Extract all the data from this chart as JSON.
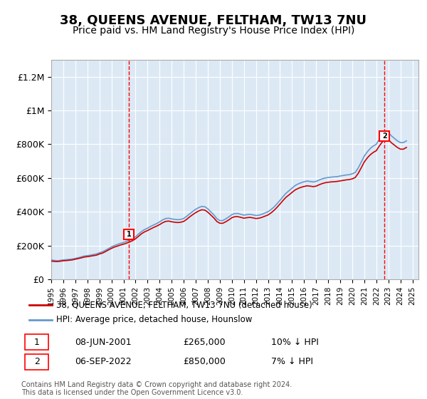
{
  "title": "38, QUEENS AVENUE, FELTHAM, TW13 7NU",
  "subtitle": "Price paid vs. HM Land Registry's House Price Index (HPI)",
  "title_fontsize": 13,
  "subtitle_fontsize": 10,
  "ylabel_ticks": [
    "£0",
    "£200K",
    "£400K",
    "£600K",
    "£800K",
    "£1M",
    "£1.2M"
  ],
  "ytick_values": [
    0,
    200000,
    400000,
    600000,
    800000,
    1000000,
    1200000
  ],
  "ylim": [
    0,
    1300000
  ],
  "xlim_start": 1995.0,
  "xlim_end": 2025.5,
  "background_color": "#dce9f5",
  "plot_bg_color": "#dce9f5",
  "line1_color": "#cc0000",
  "line2_color": "#6699cc",
  "line1_label": "38, QUEENS AVENUE, FELTHAM, TW13 7NU (detached house)",
  "line2_label": "HPI: Average price, detached house, Hounslow",
  "transaction1_date": "08-JUN-2001",
  "transaction1_price": "£265,000",
  "transaction1_note": "10% ↓ HPI",
  "transaction1_year": 2001.44,
  "transaction1_value": 265000,
  "transaction2_date": "06-SEP-2022",
  "transaction2_price": "£850,000",
  "transaction2_note": "7% ↓ HPI",
  "transaction2_year": 2022.68,
  "transaction2_value": 850000,
  "footer": "Contains HM Land Registry data © Crown copyright and database right 2024.\nThis data is licensed under the Open Government Licence v3.0.",
  "hpi_years": [
    1995.0,
    1995.25,
    1995.5,
    1995.75,
    1996.0,
    1996.25,
    1996.5,
    1996.75,
    1997.0,
    1997.25,
    1997.5,
    1997.75,
    1998.0,
    1998.25,
    1998.5,
    1998.75,
    1999.0,
    1999.25,
    1999.5,
    1999.75,
    2000.0,
    2000.25,
    2000.5,
    2000.75,
    2001.0,
    2001.25,
    2001.5,
    2001.75,
    2002.0,
    2002.25,
    2002.5,
    2002.75,
    2003.0,
    2003.25,
    2003.5,
    2003.75,
    2004.0,
    2004.25,
    2004.5,
    2004.75,
    2005.0,
    2005.25,
    2005.5,
    2005.75,
    2006.0,
    2006.25,
    2006.5,
    2006.75,
    2007.0,
    2007.25,
    2007.5,
    2007.75,
    2008.0,
    2008.25,
    2008.5,
    2008.75,
    2009.0,
    2009.25,
    2009.5,
    2009.75,
    2010.0,
    2010.25,
    2010.5,
    2010.75,
    2011.0,
    2011.25,
    2011.5,
    2011.75,
    2012.0,
    2012.25,
    2012.5,
    2012.75,
    2013.0,
    2013.25,
    2013.5,
    2013.75,
    2014.0,
    2014.25,
    2014.5,
    2014.75,
    2015.0,
    2015.25,
    2015.5,
    2015.75,
    2016.0,
    2016.25,
    2016.5,
    2016.75,
    2017.0,
    2017.25,
    2017.5,
    2017.75,
    2018.0,
    2018.25,
    2018.5,
    2018.75,
    2019.0,
    2019.25,
    2019.5,
    2019.75,
    2020.0,
    2020.25,
    2020.5,
    2020.75,
    2021.0,
    2021.25,
    2021.5,
    2021.75,
    2022.0,
    2022.25,
    2022.5,
    2022.75,
    2023.0,
    2023.25,
    2023.5,
    2023.75,
    2024.0,
    2024.25,
    2024.5
  ],
  "hpi_values": [
    115000,
    112000,
    110000,
    112000,
    115000,
    116000,
    118000,
    120000,
    124000,
    128000,
    133000,
    138000,
    140000,
    143000,
    147000,
    150000,
    157000,
    163000,
    172000,
    182000,
    192000,
    200000,
    207000,
    213000,
    218000,
    225000,
    232000,
    240000,
    252000,
    268000,
    283000,
    295000,
    303000,
    313000,
    322000,
    330000,
    340000,
    352000,
    360000,
    362000,
    358000,
    355000,
    353000,
    355000,
    360000,
    373000,
    388000,
    402000,
    415000,
    425000,
    432000,
    430000,
    418000,
    400000,
    382000,
    360000,
    348000,
    348000,
    358000,
    370000,
    383000,
    390000,
    390000,
    385000,
    380000,
    383000,
    385000,
    382000,
    378000,
    380000,
    385000,
    393000,
    400000,
    413000,
    428000,
    447000,
    468000,
    490000,
    510000,
    525000,
    540000,
    555000,
    565000,
    572000,
    578000,
    582000,
    580000,
    577000,
    580000,
    588000,
    595000,
    600000,
    603000,
    605000,
    607000,
    608000,
    612000,
    615000,
    618000,
    620000,
    625000,
    633000,
    660000,
    695000,
    730000,
    755000,
    775000,
    790000,
    800000,
    830000,
    855000,
    875000,
    870000,
    850000,
    835000,
    820000,
    810000,
    810000,
    820000
  ],
  "prop_years": [
    1995.0,
    1995.25,
    1995.5,
    1995.75,
    1996.0,
    1996.25,
    1996.5,
    1996.75,
    1997.0,
    1997.25,
    1997.5,
    1997.75,
    1998.0,
    1998.25,
    1998.5,
    1998.75,
    1999.0,
    1999.25,
    1999.5,
    1999.75,
    2000.0,
    2000.25,
    2000.5,
    2000.75,
    2001.0,
    2001.25,
    2001.5,
    2001.75,
    2002.0,
    2002.25,
    2002.5,
    2002.75,
    2003.0,
    2003.25,
    2003.5,
    2003.75,
    2004.0,
    2004.25,
    2004.5,
    2004.75,
    2005.0,
    2005.25,
    2005.5,
    2005.75,
    2006.0,
    2006.25,
    2006.5,
    2006.75,
    2007.0,
    2007.25,
    2007.5,
    2007.75,
    2008.0,
    2008.25,
    2008.5,
    2008.75,
    2009.0,
    2009.25,
    2009.5,
    2009.75,
    2010.0,
    2010.25,
    2010.5,
    2010.75,
    2011.0,
    2011.25,
    2011.5,
    2011.75,
    2012.0,
    2012.25,
    2012.5,
    2012.75,
    2013.0,
    2013.25,
    2013.5,
    2013.75,
    2014.0,
    2014.25,
    2014.5,
    2014.75,
    2015.0,
    2015.25,
    2015.5,
    2015.75,
    2016.0,
    2016.25,
    2016.5,
    2016.75,
    2017.0,
    2017.25,
    2017.5,
    2017.75,
    2018.0,
    2018.25,
    2018.5,
    2018.75,
    2019.0,
    2019.25,
    2019.5,
    2019.75,
    2020.0,
    2020.25,
    2020.5,
    2020.75,
    2021.0,
    2021.25,
    2021.5,
    2021.75,
    2022.0,
    2022.25,
    2022.5,
    2022.75,
    2023.0,
    2023.25,
    2023.5,
    2023.75,
    2024.0,
    2024.25,
    2024.5
  ],
  "prop_values": [
    108000,
    106000,
    105000,
    107000,
    110000,
    111000,
    113000,
    115000,
    119000,
    123000,
    127000,
    132000,
    134000,
    137000,
    140000,
    143000,
    150000,
    155000,
    164000,
    174000,
    183000,
    191000,
    197000,
    203000,
    208000,
    214000,
    221000,
    229000,
    240000,
    255000,
    270000,
    281000,
    289000,
    298000,
    307000,
    315000,
    324000,
    335000,
    343000,
    345000,
    341000,
    338000,
    336000,
    338000,
    343000,
    355000,
    370000,
    383000,
    395000,
    405000,
    412000,
    410000,
    398000,
    381000,
    364000,
    343000,
    332000,
    332000,
    341000,
    352000,
    365000,
    371000,
    371000,
    367000,
    362000,
    365000,
    367000,
    364000,
    360000,
    362000,
    367000,
    374000,
    381000,
    393000,
    408000,
    426000,
    446000,
    467000,
    486000,
    500000,
    515000,
    529000,
    538000,
    545000,
    550000,
    554000,
    552000,
    549000,
    552000,
    560000,
    567000,
    572000,
    575000,
    577000,
    578000,
    580000,
    583000,
    586000,
    589000,
    591000,
    595000,
    603000,
    628000,
    661000,
    695000,
    719000,
    738000,
    752000,
    762000,
    790000,
    814000,
    833000,
    828000,
    809000,
    795000,
    781000,
    771000,
    771000,
    781000
  ],
  "xtick_years": [
    1995,
    1996,
    1997,
    1998,
    1999,
    2000,
    2001,
    2002,
    2003,
    2004,
    2005,
    2006,
    2007,
    2008,
    2009,
    2010,
    2011,
    2012,
    2013,
    2014,
    2015,
    2016,
    2017,
    2018,
    2019,
    2020,
    2021,
    2022,
    2023,
    2024,
    2025
  ]
}
